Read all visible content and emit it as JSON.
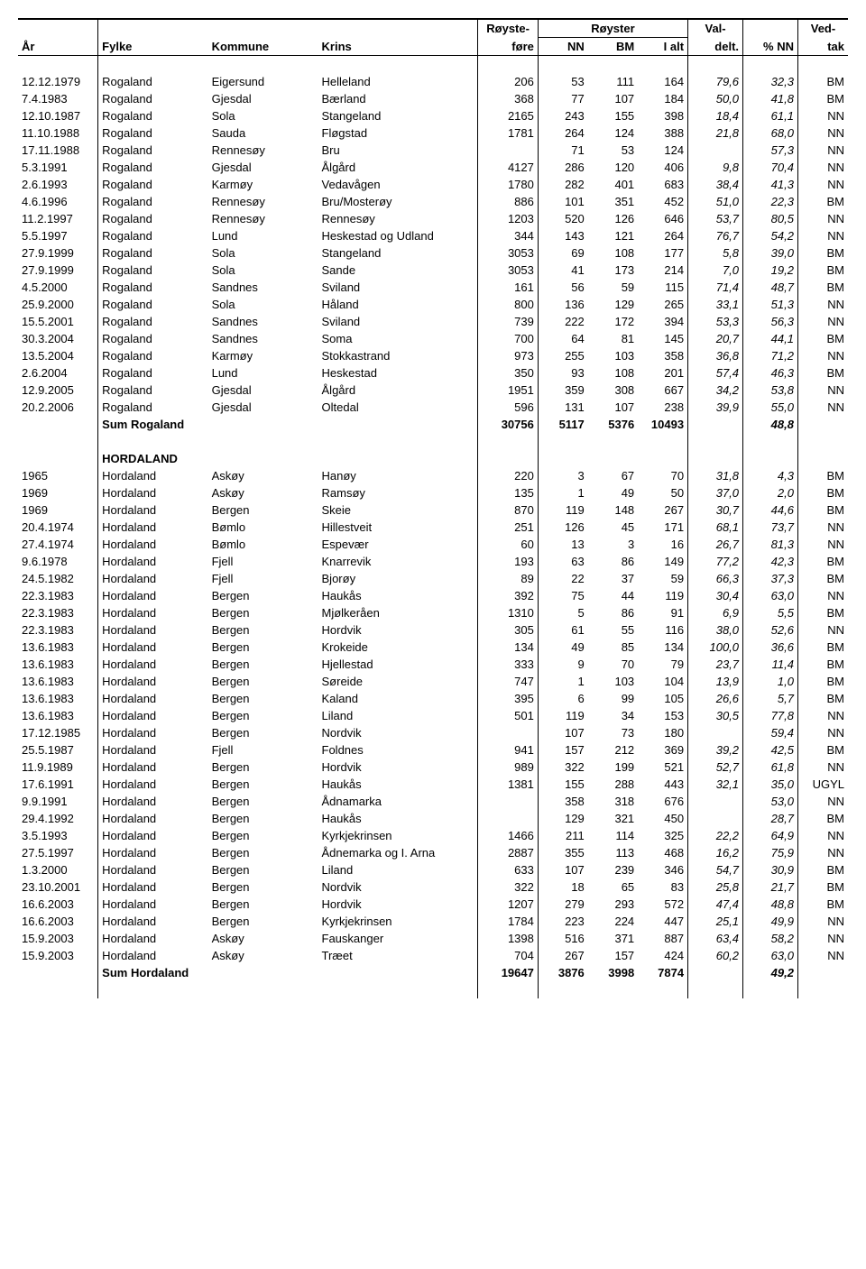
{
  "headers": {
    "ar": "År",
    "fylke": "Fylke",
    "kommune": "Kommune",
    "krins": "Krins",
    "royste_top": "Røyste-",
    "royste_bot": "føre",
    "royster": "Røyster",
    "nn": "NN",
    "bm": "BM",
    "ialt": "I alt",
    "val_top": "Val-",
    "val_bot": "delt.",
    "pnn": "% NN",
    "ved_top": "Ved-",
    "ved_bot": "tak"
  },
  "section1": {
    "rows": [
      {
        "ar": "12.12.1979",
        "fylke": "Rogaland",
        "kommune": "Eigersund",
        "krins": "Helleland",
        "rf": "206",
        "nn": "53",
        "bm": "111",
        "ialt": "164",
        "vd": "79,6",
        "pn": "32,3",
        "vt": "BM"
      },
      {
        "ar": "7.4.1983",
        "fylke": "Rogaland",
        "kommune": "Gjesdal",
        "krins": "Bærland",
        "rf": "368",
        "nn": "77",
        "bm": "107",
        "ialt": "184",
        "vd": "50,0",
        "pn": "41,8",
        "vt": "BM"
      },
      {
        "ar": "12.10.1987",
        "fylke": "Rogaland",
        "kommune": "Sola",
        "krins": "Stangeland",
        "rf": "2165",
        "nn": "243",
        "bm": "155",
        "ialt": "398",
        "vd": "18,4",
        "pn": "61,1",
        "vt": "NN"
      },
      {
        "ar": "11.10.1988",
        "fylke": "Rogaland",
        "kommune": "Sauda",
        "krins": "Fløgstad",
        "rf": "1781",
        "nn": "264",
        "bm": "124",
        "ialt": "388",
        "vd": "21,8",
        "pn": "68,0",
        "vt": "NN"
      },
      {
        "ar": "17.11.1988",
        "fylke": "Rogaland",
        "kommune": "Rennesøy",
        "krins": "Bru",
        "rf": "",
        "nn": "71",
        "bm": "53",
        "ialt": "124",
        "vd": "",
        "pn": "57,3",
        "vt": "NN"
      },
      {
        "ar": "5.3.1991",
        "fylke": "Rogaland",
        "kommune": "Gjesdal",
        "krins": "Ålgård",
        "rf": "4127",
        "nn": "286",
        "bm": "120",
        "ialt": "406",
        "vd": "9,8",
        "pn": "70,4",
        "vt": "NN"
      },
      {
        "ar": "2.6.1993",
        "fylke": "Rogaland",
        "kommune": "Karmøy",
        "krins": "Vedavågen",
        "rf": "1780",
        "nn": "282",
        "bm": "401",
        "ialt": "683",
        "vd": "38,4",
        "pn": "41,3",
        "vt": "NN"
      },
      {
        "ar": "4.6.1996",
        "fylke": "Rogaland",
        "kommune": "Rennesøy",
        "krins": "Bru/Mosterøy",
        "rf": "886",
        "nn": "101",
        "bm": "351",
        "ialt": "452",
        "vd": "51,0",
        "pn": "22,3",
        "vt": "BM"
      },
      {
        "ar": "11.2.1997",
        "fylke": "Rogaland",
        "kommune": "Rennesøy",
        "krins": "Rennesøy",
        "rf": "1203",
        "nn": "520",
        "bm": "126",
        "ialt": "646",
        "vd": "53,7",
        "pn": "80,5",
        "vt": "NN"
      },
      {
        "ar": "5.5.1997",
        "fylke": "Rogaland",
        "kommune": "Lund",
        "krins": "Heskestad og Udland",
        "rf": "344",
        "nn": "143",
        "bm": "121",
        "ialt": "264",
        "vd": "76,7",
        "pn": "54,2",
        "vt": "NN"
      },
      {
        "ar": "27.9.1999",
        "fylke": "Rogaland",
        "kommune": "Sola",
        "krins": "Stangeland",
        "rf": "3053",
        "nn": "69",
        "bm": "108",
        "ialt": "177",
        "vd": "5,8",
        "pn": "39,0",
        "vt": "BM"
      },
      {
        "ar": "27.9.1999",
        "fylke": "Rogaland",
        "kommune": "Sola",
        "krins": "Sande",
        "rf": "3053",
        "nn": "41",
        "bm": "173",
        "ialt": "214",
        "vd": "7,0",
        "pn": "19,2",
        "vt": "BM"
      },
      {
        "ar": "4.5.2000",
        "fylke": "Rogaland",
        "kommune": "Sandnes",
        "krins": "Sviland",
        "rf": "161",
        "nn": "56",
        "bm": "59",
        "ialt": "115",
        "vd": "71,4",
        "pn": "48,7",
        "vt": "BM"
      },
      {
        "ar": "25.9.2000",
        "fylke": "Rogaland",
        "kommune": "Sola",
        "krins": "Håland",
        "rf": "800",
        "nn": "136",
        "bm": "129",
        "ialt": "265",
        "vd": "33,1",
        "pn": "51,3",
        "vt": "NN"
      },
      {
        "ar": "15.5.2001",
        "fylke": "Rogaland",
        "kommune": "Sandnes",
        "krins": "Sviland",
        "rf": "739",
        "nn": "222",
        "bm": "172",
        "ialt": "394",
        "vd": "53,3",
        "pn": "56,3",
        "vt": "NN"
      },
      {
        "ar": "30.3.2004",
        "fylke": "Rogaland",
        "kommune": "Sandnes",
        "krins": "Soma",
        "rf": "700",
        "nn": "64",
        "bm": "81",
        "ialt": "145",
        "vd": "20,7",
        "pn": "44,1",
        "vt": "BM"
      },
      {
        "ar": "13.5.2004",
        "fylke": "Rogaland",
        "kommune": "Karmøy",
        "krins": "Stokkastrand",
        "rf": "973",
        "nn": "255",
        "bm": "103",
        "ialt": "358",
        "vd": "36,8",
        "pn": "71,2",
        "vt": "NN"
      },
      {
        "ar": "2.6.2004",
        "fylke": "Rogaland",
        "kommune": "Lund",
        "krins": "Heskestad",
        "rf": "350",
        "nn": "93",
        "bm": "108",
        "ialt": "201",
        "vd": "57,4",
        "pn": "46,3",
        "vt": "BM"
      },
      {
        "ar": "12.9.2005",
        "fylke": "Rogaland",
        "kommune": "Gjesdal",
        "krins": "Ålgård",
        "rf": "1951",
        "nn": "359",
        "bm": "308",
        "ialt": "667",
        "vd": "34,2",
        "pn": "53,8",
        "vt": "NN"
      },
      {
        "ar": "20.2.2006",
        "fylke": "Rogaland",
        "kommune": "Gjesdal",
        "krins": "Oltedal",
        "rf": "596",
        "nn": "131",
        "bm": "107",
        "ialt": "238",
        "vd": "39,9",
        "pn": "55,0",
        "vt": "NN"
      }
    ],
    "sum": {
      "label": "Sum Rogaland",
      "rf": "30756",
      "nn": "5117",
      "bm": "5376",
      "ialt": "10493",
      "pn": "48,8"
    }
  },
  "section2": {
    "title": "HORDALAND",
    "rows": [
      {
        "ar": "1965",
        "fylke": "Hordaland",
        "kommune": "Askøy",
        "krins": "Hanøy",
        "rf": "220",
        "nn": "3",
        "bm": "67",
        "ialt": "70",
        "vd": "31,8",
        "pn": "4,3",
        "vt": "BM"
      },
      {
        "ar": "1969",
        "fylke": "Hordaland",
        "kommune": "Askøy",
        "krins": "Ramsøy",
        "rf": "135",
        "nn": "1",
        "bm": "49",
        "ialt": "50",
        "vd": "37,0",
        "pn": "2,0",
        "vt": "BM"
      },
      {
        "ar": "1969",
        "fylke": "Hordaland",
        "kommune": "Bergen",
        "krins": "Skeie",
        "rf": "870",
        "nn": "119",
        "bm": "148",
        "ialt": "267",
        "vd": "30,7",
        "pn": "44,6",
        "vt": "BM"
      },
      {
        "ar": "20.4.1974",
        "fylke": "Hordaland",
        "kommune": "Bømlo",
        "krins": "Hillestveit",
        "rf": "251",
        "nn": "126",
        "bm": "45",
        "ialt": "171",
        "vd": "68,1",
        "pn": "73,7",
        "vt": "NN"
      },
      {
        "ar": "27.4.1974",
        "fylke": "Hordaland",
        "kommune": "Bømlo",
        "krins": "Espevær",
        "rf": "60",
        "nn": "13",
        "bm": "3",
        "ialt": "16",
        "vd": "26,7",
        "pn": "81,3",
        "vt": "NN"
      },
      {
        "ar": "9.6.1978",
        "fylke": "Hordaland",
        "kommune": "Fjell",
        "krins": "Knarrevik",
        "rf": "193",
        "nn": "63",
        "bm": "86",
        "ialt": "149",
        "vd": "77,2",
        "pn": "42,3",
        "vt": "BM"
      },
      {
        "ar": "24.5.1982",
        "fylke": "Hordaland",
        "kommune": "Fjell",
        "krins": "Bjorøy",
        "rf": "89",
        "nn": "22",
        "bm": "37",
        "ialt": "59",
        "vd": "66,3",
        "pn": "37,3",
        "vt": "BM"
      },
      {
        "ar": "22.3.1983",
        "fylke": "Hordaland",
        "kommune": "Bergen",
        "krins": "Haukås",
        "rf": "392",
        "nn": "75",
        "bm": "44",
        "ialt": "119",
        "vd": "30,4",
        "pn": "63,0",
        "vt": "NN"
      },
      {
        "ar": "22.3.1983",
        "fylke": "Hordaland",
        "kommune": "Bergen",
        "krins": "Mjølkeråen",
        "rf": "1310",
        "nn": "5",
        "bm": "86",
        "ialt": "91",
        "vd": "6,9",
        "pn": "5,5",
        "vt": "BM"
      },
      {
        "ar": "22.3.1983",
        "fylke": "Hordaland",
        "kommune": "Bergen",
        "krins": "Hordvik",
        "rf": "305",
        "nn": "61",
        "bm": "55",
        "ialt": "116",
        "vd": "38,0",
        "pn": "52,6",
        "vt": "NN"
      },
      {
        "ar": "13.6.1983",
        "fylke": "Hordaland",
        "kommune": "Bergen",
        "krins": "Krokeide",
        "rf": "134",
        "nn": "49",
        "bm": "85",
        "ialt": "134",
        "vd": "100,0",
        "pn": "36,6",
        "vt": "BM"
      },
      {
        "ar": "13.6.1983",
        "fylke": "Hordaland",
        "kommune": "Bergen",
        "krins": "Hjellestad",
        "rf": "333",
        "nn": "9",
        "bm": "70",
        "ialt": "79",
        "vd": "23,7",
        "pn": "11,4",
        "vt": "BM"
      },
      {
        "ar": "13.6.1983",
        "fylke": "Hordaland",
        "kommune": "Bergen",
        "krins": "Søreide",
        "rf": "747",
        "nn": "1",
        "bm": "103",
        "ialt": "104",
        "vd": "13,9",
        "pn": "1,0",
        "vt": "BM"
      },
      {
        "ar": "13.6.1983",
        "fylke": "Hordaland",
        "kommune": "Bergen",
        "krins": "Kaland",
        "rf": "395",
        "nn": "6",
        "bm": "99",
        "ialt": "105",
        "vd": "26,6",
        "pn": "5,7",
        "vt": "BM"
      },
      {
        "ar": "13.6.1983",
        "fylke": "Hordaland",
        "kommune": "Bergen",
        "krins": "Liland",
        "rf": "501",
        "nn": "119",
        "bm": "34",
        "ialt": "153",
        "vd": "30,5",
        "pn": "77,8",
        "vt": "NN"
      },
      {
        "ar": "17.12.1985",
        "fylke": "Hordaland",
        "kommune": "Bergen",
        "krins": "Nordvik",
        "rf": "",
        "nn": "107",
        "bm": "73",
        "ialt": "180",
        "vd": "",
        "pn": "59,4",
        "vt": "NN"
      },
      {
        "ar": "25.5.1987",
        "fylke": "Hordaland",
        "kommune": "Fjell",
        "krins": "Foldnes",
        "rf": "941",
        "nn": "157",
        "bm": "212",
        "ialt": "369",
        "vd": "39,2",
        "pn": "42,5",
        "vt": "BM"
      },
      {
        "ar": "11.9.1989",
        "fylke": "Hordaland",
        "kommune": "Bergen",
        "krins": "Hordvik",
        "rf": "989",
        "nn": "322",
        "bm": "199",
        "ialt": "521",
        "vd": "52,7",
        "pn": "61,8",
        "vt": "NN"
      },
      {
        "ar": "17.6.1991",
        "fylke": "Hordaland",
        "kommune": "Bergen",
        "krins": "Haukås",
        "rf": "1381",
        "nn": "155",
        "bm": "288",
        "ialt": "443",
        "vd": "32,1",
        "pn": "35,0",
        "vt": "UGYL"
      },
      {
        "ar": "9.9.1991",
        "fylke": "Hordaland",
        "kommune": "Bergen",
        "krins": "Ådnamarka",
        "rf": "",
        "nn": "358",
        "bm": "318",
        "ialt": "676",
        "vd": "",
        "pn": "53,0",
        "vt": "NN"
      },
      {
        "ar": "29.4.1992",
        "fylke": "Hordaland",
        "kommune": "Bergen",
        "krins": "Haukås",
        "rf": "",
        "nn": "129",
        "bm": "321",
        "ialt": "450",
        "vd": "",
        "pn": "28,7",
        "vt": "BM"
      },
      {
        "ar": "3.5.1993",
        "fylke": "Hordaland",
        "kommune": "Bergen",
        "krins": "Kyrkjekrinsen",
        "rf": "1466",
        "nn": "211",
        "bm": "114",
        "ialt": "325",
        "vd": "22,2",
        "pn": "64,9",
        "vt": "NN"
      },
      {
        "ar": "27.5.1997",
        "fylke": "Hordaland",
        "kommune": "Bergen",
        "krins": "Ådnemarka og I. Arna",
        "rf": "2887",
        "nn": "355",
        "bm": "113",
        "ialt": "468",
        "vd": "16,2",
        "pn": "75,9",
        "vt": "NN"
      },
      {
        "ar": "1.3.2000",
        "fylke": "Hordaland",
        "kommune": "Bergen",
        "krins": "Liland",
        "rf": "633",
        "nn": "107",
        "bm": "239",
        "ialt": "346",
        "vd": "54,7",
        "pn": "30,9",
        "vt": "BM"
      },
      {
        "ar": "23.10.2001",
        "fylke": "Hordaland",
        "kommune": "Bergen",
        "krins": "Nordvik",
        "rf": "322",
        "nn": "18",
        "bm": "65",
        "ialt": "83",
        "vd": "25,8",
        "pn": "21,7",
        "vt": "BM"
      },
      {
        "ar": "16.6.2003",
        "fylke": "Hordaland",
        "kommune": "Bergen",
        "krins": "Hordvik",
        "rf": "1207",
        "nn": "279",
        "bm": "293",
        "ialt": "572",
        "vd": "47,4",
        "pn": "48,8",
        "vt": "BM"
      },
      {
        "ar": "16.6.2003",
        "fylke": "Hordaland",
        "kommune": "Bergen",
        "krins": "Kyrkjekrinsen",
        "rf": "1784",
        "nn": "223",
        "bm": "224",
        "ialt": "447",
        "vd": "25,1",
        "pn": "49,9",
        "vt": "NN"
      },
      {
        "ar": "15.9.2003",
        "fylke": "Hordaland",
        "kommune": "Askøy",
        "krins": "Fauskanger",
        "rf": "1398",
        "nn": "516",
        "bm": "371",
        "ialt": "887",
        "vd": "63,4",
        "pn": "58,2",
        "vt": "NN"
      },
      {
        "ar": "15.9.2003",
        "fylke": "Hordaland",
        "kommune": "Askøy",
        "krins": "Træet",
        "rf": "704",
        "nn": "267",
        "bm": "157",
        "ialt": "424",
        "vd": "60,2",
        "pn": "63,0",
        "vt": "NN"
      }
    ],
    "sum": {
      "label": "Sum Hordaland",
      "rf": "19647",
      "nn": "3876",
      "bm": "3998",
      "ialt": "7874",
      "pn": "49,2"
    }
  }
}
